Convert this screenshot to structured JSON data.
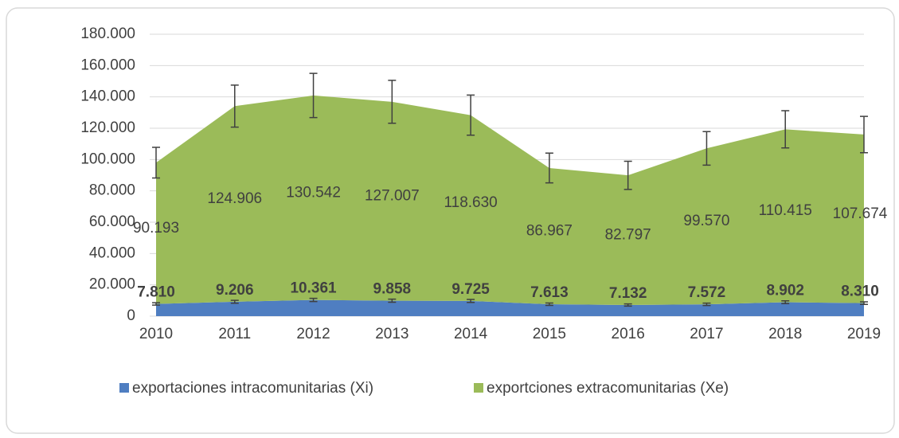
{
  "chart_data": {
    "type": "stacked_area",
    "categories": [
      "2010",
      "2011",
      "2012",
      "2013",
      "2014",
      "2015",
      "2016",
      "2017",
      "2018",
      "2019"
    ],
    "series": [
      {
        "name": "exportaciones intracomunitarias (Xi)",
        "color": "#4f7ec1",
        "values": [
          7810,
          9206,
          10361,
          9858,
          9725,
          7613,
          7132,
          7572,
          8902,
          8310
        ],
        "value_labels": [
          "7.810",
          "9.206",
          "10.361",
          "9.858",
          "9.725",
          "7.613",
          "7.132",
          "7.572",
          "8.902",
          "8.310"
        ],
        "errors": [
          780,
          920,
          1040,
          990,
          970,
          760,
          710,
          760,
          890,
          830
        ]
      },
      {
        "name": "exportciones extracomunitarias (Xe)",
        "color": "#9bbb59",
        "values": [
          90193,
          124906,
          130542,
          127007,
          118630,
          86967,
          82797,
          99570,
          110415,
          107674
        ],
        "value_labels": [
          "90.193",
          "124.906",
          "130.542",
          "127.007",
          "118.630",
          "86.967",
          "82.797",
          "99.570",
          "110.415",
          "107.674"
        ],
        "errors": [
          9800,
          13400,
          14100,
          13700,
          12800,
          9500,
          9000,
          10700,
          11900,
          11600
        ]
      }
    ],
    "ylim": [
      0,
      180000
    ],
    "yticks": [
      0,
      {
        "value": 20000,
        "label": "20.000"
      },
      {
        "value": 40000,
        "label": "40.000"
      },
      {
        "value": 60000,
        "label": "60.000"
      },
      {
        "value": 80000,
        "label": "80.000"
      },
      {
        "value": 100000,
        "label": "100.000"
      },
      {
        "value": 120000,
        "label": "120.000"
      },
      {
        "value": 140000,
        "label": "140.000"
      },
      {
        "value": 160000,
        "label": "160.000"
      },
      {
        "value": 180000,
        "label": "180.000"
      }
    ],
    "grid": true,
    "legend": "bottom"
  }
}
